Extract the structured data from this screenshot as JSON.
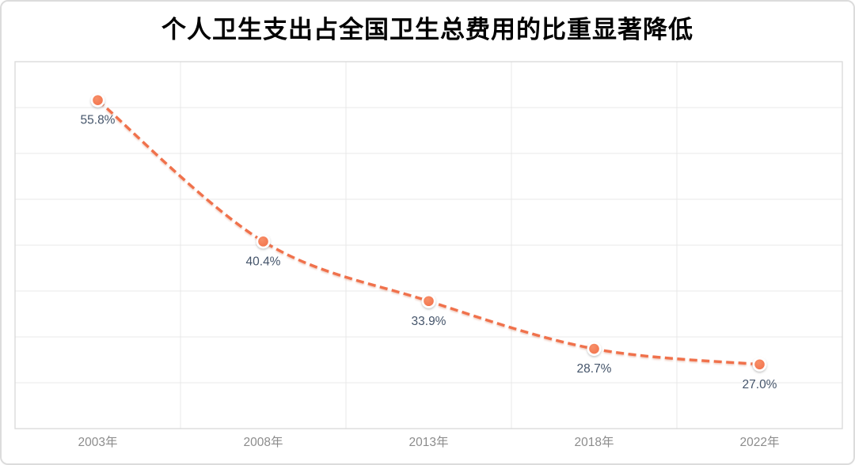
{
  "title": "个人卫生支出占全国卫生总费用的比重显著降低",
  "chart_data": {
    "type": "line",
    "line_style": "dashed",
    "smooth": true,
    "title": "个人卫生支出占全国卫生总费用的比重显著降低",
    "categories": [
      "2003年",
      "2008年",
      "2013年",
      "2018年",
      "2022年"
    ],
    "values": [
      55.8,
      40.4,
      33.9,
      28.7,
      27.0
    ],
    "data_labels": [
      "55.8%",
      "40.4%",
      "33.9%",
      "28.7%",
      "27.0%"
    ],
    "xlabel": "",
    "ylabel": "",
    "ylim": [
      20,
      60
    ],
    "y_step": 5,
    "grid": true,
    "y_tick_labels_visible": false,
    "legend_position": "none",
    "colors": {
      "line": "#f0714b",
      "marker_fill": "#f3754e",
      "marker_highlight": "#f78f68",
      "marker_ring": "#ffffff",
      "data_label": "#44546a",
      "axis_label": "#8c8c8c",
      "gridline": "#e9e9e9",
      "plot_border": "#d9d9d9",
      "title_color": "#000000"
    }
  }
}
